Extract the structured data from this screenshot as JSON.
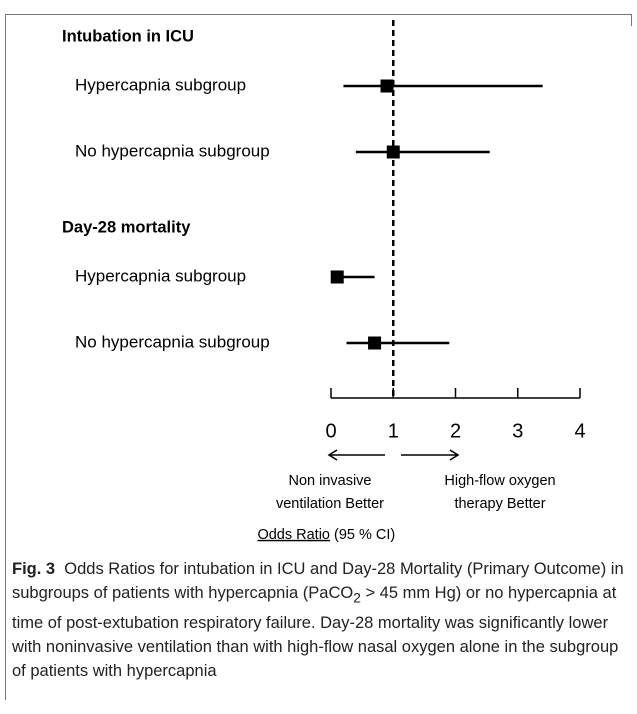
{
  "chart_data": {
    "type": "forest",
    "sections": [
      {
        "title": "Intubation in ICU",
        "rows": [
          {
            "label": "Hypercapnia subgroup",
            "value": 0.9,
            "lower": 0.2,
            "upper": 3.4
          },
          {
            "label": "No hypercapnia subgroup",
            "value": 1.0,
            "lower": 0.4,
            "upper": 2.55
          }
        ]
      },
      {
        "title": "Day-28 mortality",
        "rows": [
          {
            "label": "Hypercapnia subgroup",
            "value": 0.1,
            "lower": 0.05,
            "upper": 0.7
          },
          {
            "label": "No hypercapnia subgroup",
            "value": 0.7,
            "lower": 0.25,
            "upper": 1.9
          }
        ]
      }
    ],
    "xlim": [
      0,
      4
    ],
    "xticks": [
      0,
      1,
      2,
      3,
      4
    ],
    "reference_line": 1,
    "color": "#000000",
    "left_label": [
      "Non invasive",
      "ventilation Better"
    ],
    "right_label": [
      "High-flow oxygen",
      "therapy Better"
    ],
    "x_label": "Odds Ratio",
    "x_label_suffix": "(95 % CI)"
  },
  "caption": {
    "label": "Fig. 3",
    "text_1": "Odds Ratios for intubation in ICU and Day-28 Mortality (Primary Outcome) in subgroups of patients with hypercapnia (PaCO",
    "subscript": "2",
    "text_2": " > 45 mm Hg) or no hypercapnia at time of post-extubation respiratory failure. Day-28 mortality was significantly lower with noninvasive ventilation than with high-flow nasal oxygen alone in the subgroup of patients with hypercapnia"
  }
}
